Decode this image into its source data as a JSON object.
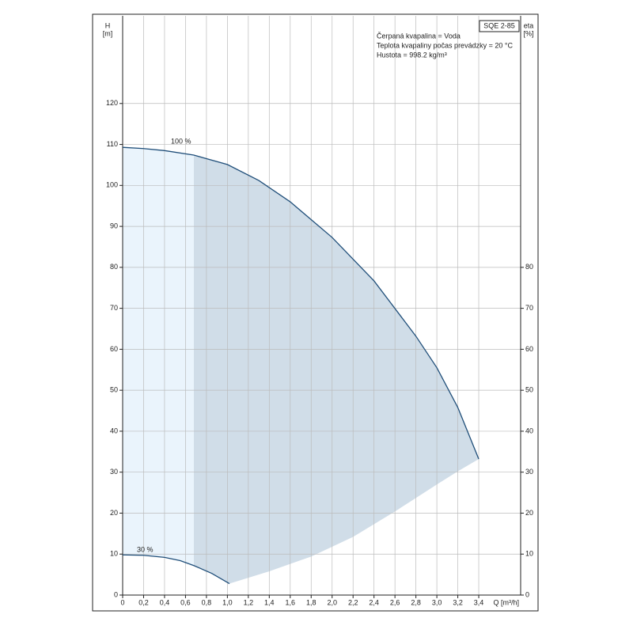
{
  "chart_data": {
    "type": "line",
    "model": "SQE 2-85",
    "info": [
      "Čerpaná kvapalina = Voda",
      "Teplota kvapaliny počas prevádzky = 20 °C",
      "Hustota = 998.2 kg/m³"
    ],
    "y_label": [
      "H",
      "[m]"
    ],
    "y2_label": [
      "eta",
      "[%]"
    ],
    "x_label": "Q [m³/h]",
    "xlim": [
      0,
      3.8
    ],
    "xticks": [
      0,
      {
        "value": 0.2,
        "label": "0,2"
      },
      {
        "value": 0.4,
        "label": "0,4"
      },
      {
        "value": 0.6,
        "label": "0,6"
      },
      {
        "value": 0.8,
        "label": "0,8"
      },
      {
        "value": 1.0,
        "label": "1,0"
      },
      {
        "value": 1.2,
        "label": "1,2"
      },
      {
        "value": 1.4,
        "label": "1,4"
      },
      {
        "value": 1.6,
        "label": "1,6"
      },
      {
        "value": 1.8,
        "label": "1,8"
      },
      {
        "value": 2.0,
        "label": "2,0"
      },
      {
        "value": 2.2,
        "label": "2,2"
      },
      {
        "value": 2.4,
        "label": "2,4"
      },
      {
        "value": 2.6,
        "label": "2,6"
      },
      {
        "value": 2.8,
        "label": "2,8"
      },
      {
        "value": 3.0,
        "label": "3,0"
      },
      {
        "value": 3.2,
        "label": "3,2"
      },
      {
        "value": 3.4,
        "label": "3,4"
      }
    ],
    "ylim": [
      0,
      141.4
    ],
    "yticks": [
      0,
      10,
      20,
      30,
      40,
      50,
      60,
      70,
      80,
      90,
      100,
      110,
      120
    ],
    "y2lim": [
      0,
      141.4
    ],
    "y2ticks": [
      0,
      10,
      20,
      30,
      40,
      50,
      60,
      70,
      80
    ],
    "grid": true,
    "shading": {
      "split_q": 0.68,
      "light": "#eaf4fc",
      "dark": "#d0dde8"
    },
    "series": [
      {
        "name": "100 %",
        "color": "#1f4e79",
        "x": [
          0,
          0.2,
          0.4,
          0.68,
          1.0,
          1.3,
          1.6,
          2.0,
          2.4,
          2.8,
          3.0,
          3.2,
          3.4
        ],
        "values": [
          109.3,
          109.0,
          108.5,
          107.4,
          105.1,
          101.2,
          96.0,
          87.3,
          76.7,
          63.2,
          55.5,
          45.8,
          33.2
        ]
      },
      {
        "name": "30 %",
        "color": "#1f4e79",
        "x": [
          0,
          0.2,
          0.4,
          0.55,
          0.68,
          0.85,
          1.02
        ],
        "values": [
          9.8,
          9.7,
          9.2,
          8.4,
          7.2,
          5.3,
          2.8
        ]
      },
      {
        "color": "none",
        "x": [
          1.02,
          1.4,
          1.8,
          2.2,
          2.6,
          3.0,
          3.2,
          3.4
        ],
        "values": [
          2.8,
          5.8,
          9.4,
          14.2,
          20.4,
          27.0,
          30.2,
          33.2
        ]
      }
    ]
  }
}
